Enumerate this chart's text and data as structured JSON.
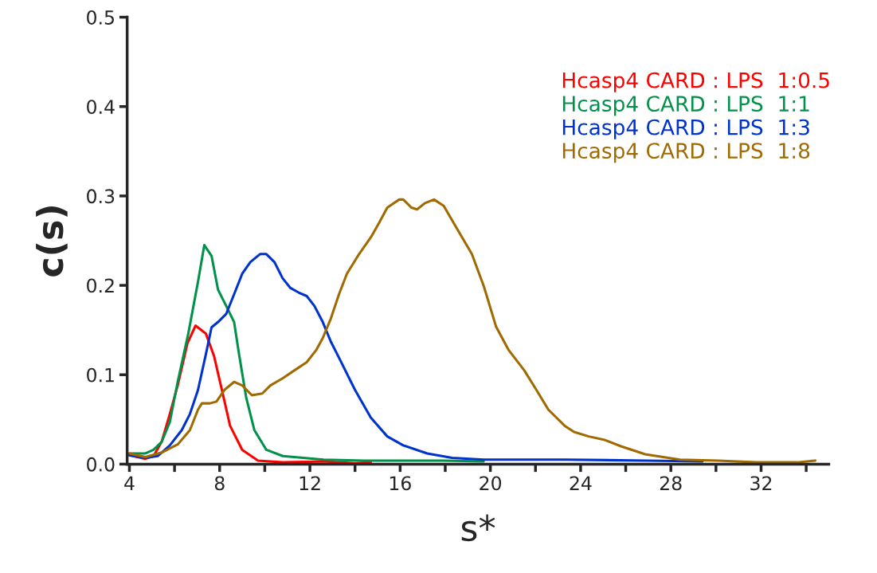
{
  "chart_data": {
    "type": "line",
    "xlabel": "s*",
    "ylabel": "c(s)",
    "xlim": [
      3.9,
      35.0
    ],
    "ylim": [
      0,
      0.5
    ],
    "xticks": [
      4,
      {
        "value": 6,
        "label": null
      },
      8,
      {
        "value": 10,
        "label": null
      },
      12,
      {
        "value": 14,
        "label": null
      },
      16,
      {
        "value": 18,
        "label": null
      },
      20,
      {
        "value": 22,
        "label": null
      },
      24,
      {
        "value": 26,
        "label": null
      },
      28,
      {
        "value": 30,
        "label": null
      },
      32,
      {
        "value": 34,
        "label": null
      }
    ],
    "yticks": [
      {
        "value": 0,
        "label": "0.0"
      },
      0.1,
      0.2,
      0.3,
      0.4,
      0.5
    ],
    "legend": "top right",
    "grid": false,
    "series": [
      {
        "name": "Hcasp4 CARD : LPS  1:0.5",
        "color": "#ff0000",
        "x": [
          4,
          4.36,
          4.71,
          5.07,
          5.43,
          5.79,
          6.14,
          6.57,
          6.93,
          7.39,
          7.75,
          8.1,
          8.46,
          9.0,
          9.7,
          10.8,
          12.6,
          14.0,
          14.7
        ],
        "values": [
          0.01,
          0.008,
          0.006,
          0.009,
          0.025,
          0.056,
          0.088,
          0.135,
          0.155,
          0.146,
          0.121,
          0.083,
          0.043,
          0.016,
          0.004,
          0.002,
          0.003,
          0.001,
          0.002
        ]
      },
      {
        "name": "Hcasp4 CARD : LPS  1:1",
        "color": "#00914a",
        "x": [
          4,
          4.71,
          5.07,
          5.43,
          5.79,
          6.14,
          6.61,
          7.04,
          7.32,
          7.64,
          7.93,
          8.29,
          8.64,
          8.86,
          9.18,
          9.54,
          10.07,
          10.8,
          12.6,
          14.4,
          16.1,
          17.9,
          19.7
        ],
        "values": [
          0.012,
          0.012,
          0.016,
          0.025,
          0.047,
          0.092,
          0.146,
          0.204,
          0.245,
          0.233,
          0.195,
          0.177,
          0.159,
          0.123,
          0.074,
          0.038,
          0.016,
          0.009,
          0.005,
          0.004,
          0.004,
          0.004,
          0.003
        ]
      },
      {
        "name": "Hcasp4 CARD : LPS  1:3",
        "color": "#0033cc",
        "x": [
          4,
          4.71,
          5.25,
          5.79,
          6.32,
          6.68,
          7.04,
          7.39,
          7.64,
          7.93,
          8.29,
          8.64,
          9.0,
          9.36,
          9.79,
          10.07,
          10.43,
          10.79,
          11.14,
          11.5,
          11.86,
          12.2,
          12.57,
          12.93,
          13.29,
          14.0,
          14.7,
          15.43,
          16.14,
          17.2,
          18.3,
          19.7,
          23.3,
          26.9,
          29.4
        ],
        "values": [
          0.01,
          0.007,
          0.009,
          0.021,
          0.038,
          0.056,
          0.083,
          0.123,
          0.153,
          0.159,
          0.168,
          0.19,
          0.213,
          0.226,
          0.235,
          0.235,
          0.226,
          0.208,
          0.197,
          0.192,
          0.188,
          0.177,
          0.159,
          0.137,
          0.119,
          0.083,
          0.052,
          0.031,
          0.021,
          0.012,
          0.007,
          0.005,
          0.005,
          0.004,
          0.003
        ]
      },
      {
        "name": "Hcasp4 CARD : LPS  1:8",
        "color": "#a06a00",
        "x": [
          4,
          4.71,
          5.43,
          6.14,
          6.68,
          7.04,
          7.21,
          7.57,
          7.86,
          8.21,
          8.64,
          9.0,
          9.43,
          9.89,
          10.25,
          10.79,
          11.32,
          11.86,
          12.29,
          12.57,
          12.93,
          13.29,
          13.64,
          14.18,
          14.71,
          15.07,
          15.43,
          15.96,
          16.14,
          16.5,
          16.75,
          17.1,
          17.5,
          17.93,
          18.46,
          19.18,
          19.71,
          20.25,
          20.8,
          21.5,
          22.04,
          22.57,
          23.29,
          23.71,
          24.36,
          25.07,
          25.79,
          26.86,
          28.4,
          30.1,
          31.8,
          33.6,
          34.4
        ],
        "values": [
          0.012,
          0.008,
          0.013,
          0.022,
          0.038,
          0.061,
          0.068,
          0.068,
          0.07,
          0.083,
          0.092,
          0.088,
          0.077,
          0.079,
          0.088,
          0.096,
          0.105,
          0.114,
          0.128,
          0.141,
          0.163,
          0.19,
          0.213,
          0.235,
          0.254,
          0.27,
          0.287,
          0.296,
          0.296,
          0.287,
          0.285,
          0.292,
          0.296,
          0.289,
          0.266,
          0.235,
          0.199,
          0.154,
          0.128,
          0.105,
          0.083,
          0.061,
          0.043,
          0.036,
          0.031,
          0.027,
          0.02,
          0.011,
          0.005,
          0.004,
          0.002,
          0.002,
          0.004
        ]
      }
    ]
  }
}
